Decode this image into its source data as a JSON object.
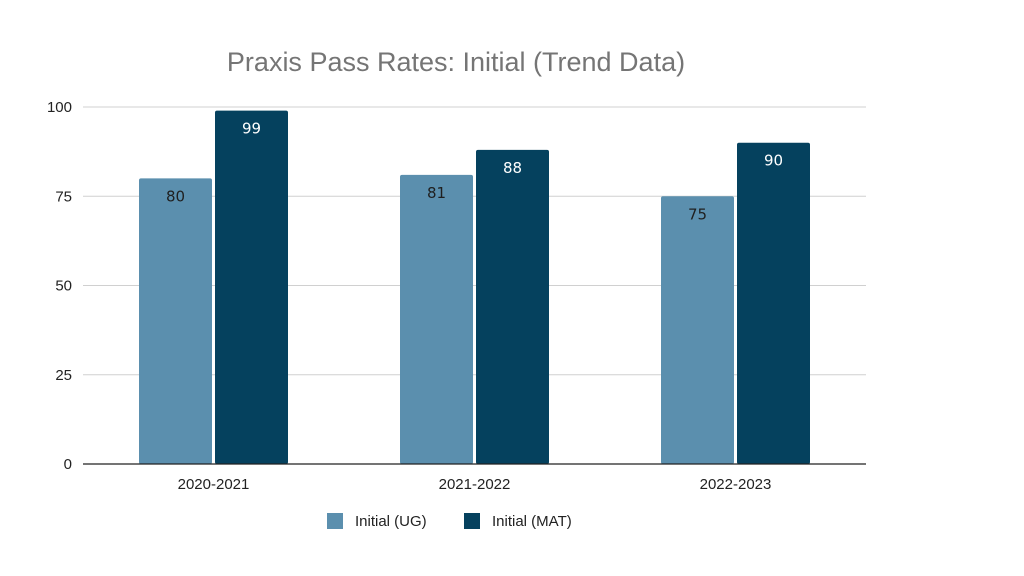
{
  "chart_data": {
    "type": "bar",
    "title": "Praxis Pass Rates: Initial (Trend Data)",
    "xlabel": "",
    "ylabel": "",
    "categories": [
      "2020-2021",
      "2021-2022",
      "2022-2023"
    ],
    "series": [
      {
        "name": "Initial (UG)",
        "values": [
          80,
          81,
          75
        ],
        "color": "#5b8fae",
        "label_color": "#1f1f1f"
      },
      {
        "name": "Initial (MAT)",
        "values": [
          99,
          88,
          90
        ],
        "color": "#05415e",
        "label_color": "#ffffff"
      }
    ],
    "ylim": [
      0,
      100
    ],
    "yticks": [
      0,
      25,
      50,
      75,
      100
    ],
    "grid": true,
    "legend": "bottom"
  },
  "colors": {
    "gridline": "#d0d0d0",
    "axis": "#222222",
    "title": "#757575"
  }
}
